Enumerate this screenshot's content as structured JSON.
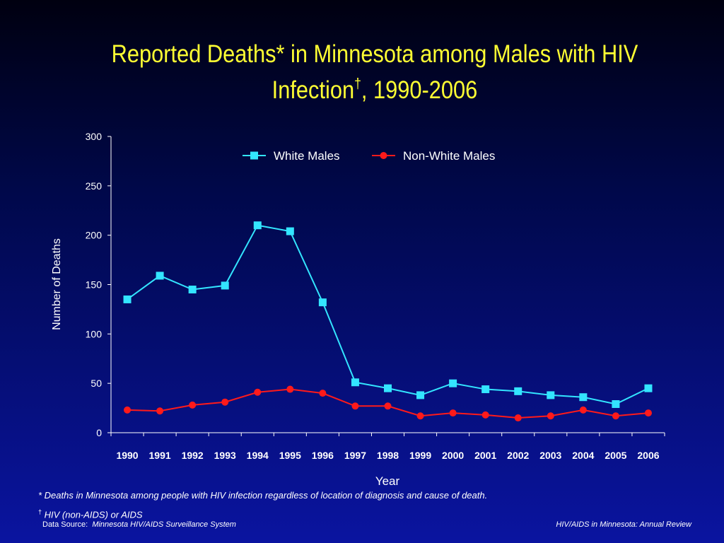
{
  "title": {
    "line1": "Reported Deaths* in Minnesota among Males with HIV",
    "line2_main": "Infection",
    "line2_mark": "†",
    "line2_rest": ", 1990-2006"
  },
  "chart_data": {
    "type": "line",
    "xlabel": "Year",
    "ylabel": "Number of Deaths",
    "ylim": [
      0,
      300
    ],
    "yticks": [
      0,
      50,
      100,
      150,
      200,
      250,
      300
    ],
    "categories": [
      "1990",
      "1991",
      "1992",
      "1993",
      "1994",
      "1995",
      "1996",
      "1997",
      "1998",
      "1999",
      "2000",
      "2001",
      "2002",
      "2003",
      "2004",
      "2005",
      "2006"
    ],
    "legend_position": "top-center",
    "grid": false,
    "series": [
      {
        "name": "White Males",
        "color": "#33e5ff",
        "marker": "square",
        "values": [
          135,
          159,
          145,
          149,
          210,
          204,
          132,
          51,
          45,
          38,
          50,
          44,
          42,
          38,
          36,
          29,
          45
        ]
      },
      {
        "name": "Non-White Males",
        "color": "#ff1a1a",
        "marker": "circle",
        "values": [
          23,
          22,
          28,
          31,
          41,
          44,
          40,
          27,
          27,
          17,
          20,
          18,
          15,
          17,
          23,
          17,
          20
        ]
      }
    ]
  },
  "footnotes": {
    "asterisk": "* Deaths in Minnesota among people with HIV infection regardless of location of diagnosis and cause of death.",
    "dagger_mark": "†",
    "dagger": " HIV (non-AIDS) or AIDS"
  },
  "source": {
    "label": "Data Source:",
    "value": "Minnesota HIV/AIDS Surveillance System",
    "right": "HIV/AIDS in Minnesota: Annual Review"
  },
  "colors": {
    "title": "#ffff33",
    "axis": "#ffffff"
  }
}
